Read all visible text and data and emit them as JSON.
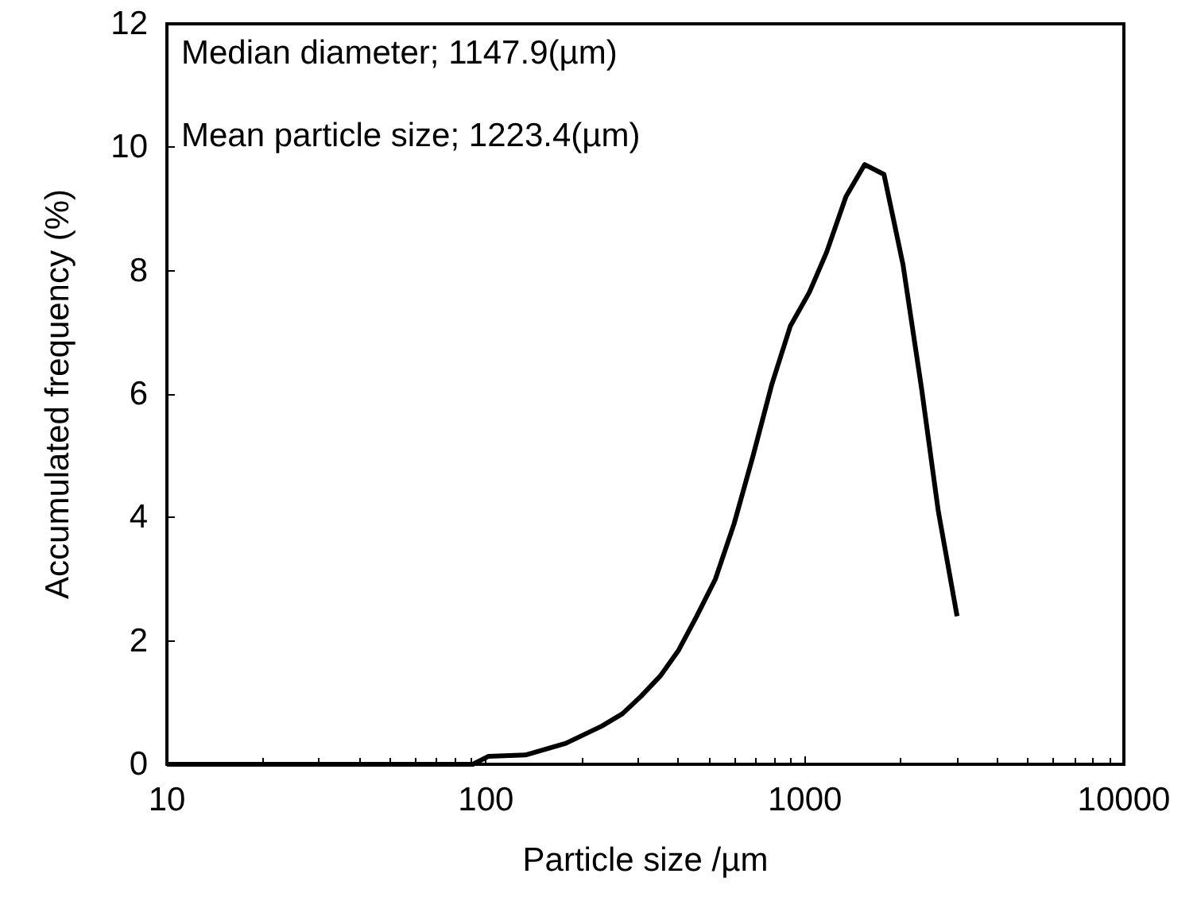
{
  "chart_data": {
    "type": "line",
    "xlabel": "Particle size /µm",
    "ylabel": "Accumulated frequency (%)",
    "annotations": [
      "Median diameter; 1147.9(µm)",
      "Mean particle size; 1223.4(µm)"
    ],
    "series": [
      {
        "color": "#000000",
        "x": [
          10,
          91,
          102,
          133,
          178,
          231,
          268,
          306,
          352,
          401,
          458,
          524,
          600,
          688,
          788,
          900,
          1033,
          1170,
          1345,
          1540,
          1770,
          2030,
          2320,
          2620,
          3000
        ],
        "values": [
          0,
          0,
          0.13,
          0.15,
          0.34,
          0.62,
          0.82,
          1.1,
          1.43,
          1.84,
          2.4,
          3.0,
          3.9,
          5.0,
          6.16,
          7.1,
          7.65,
          8.3,
          9.2,
          9.72,
          9.56,
          8.1,
          6.1,
          4.1,
          2.4
        ]
      }
    ],
    "log": "x",
    "xlim": [
      10,
      10000
    ],
    "xticks": [
      10,
      100,
      1000,
      10000
    ],
    "ylim": [
      0,
      12
    ],
    "yticks": [
      0,
      2,
      4,
      6,
      8,
      10,
      12
    ],
    "grid": false,
    "marker": "none",
    "line_style": "solid"
  }
}
